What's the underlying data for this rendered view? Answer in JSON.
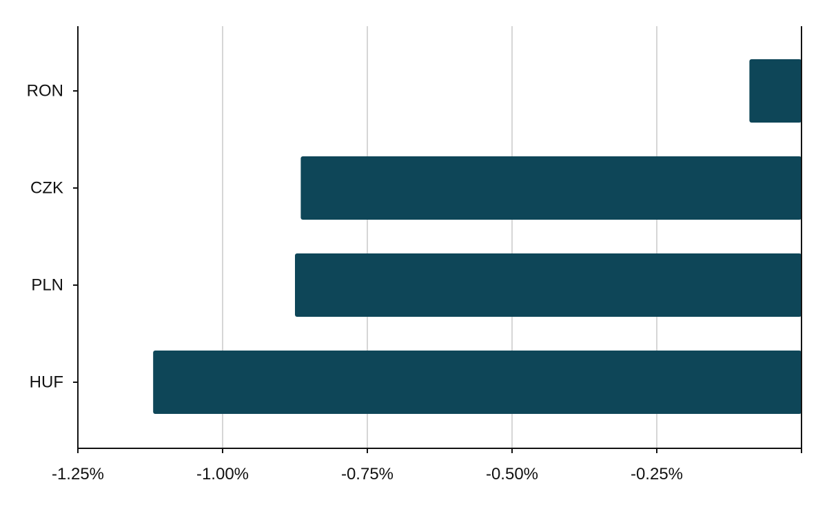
{
  "chart_data": {
    "type": "bar",
    "orientation": "horizontal",
    "categories": [
      "RON",
      "CZK",
      "PLN",
      "HUF"
    ],
    "values": [
      -0.09,
      -0.865,
      -0.875,
      -1.12
    ],
    "xlim": [
      -1.25,
      0
    ],
    "x_ticks": [
      -1.25,
      -1.0,
      -0.75,
      -0.5,
      -0.25,
      0
    ],
    "x_tick_labels": [
      "-1.25%",
      "-1.00%",
      "-0.75%",
      "-0.50%",
      "-0.25%",
      ""
    ],
    "title": "",
    "xlabel": "",
    "ylabel": "",
    "grid": "vertical",
    "legend": "none",
    "colors": {
      "bar": "#0e4658",
      "grid": "#c8c8c8",
      "axis": "#111111",
      "text": "#111111"
    }
  }
}
